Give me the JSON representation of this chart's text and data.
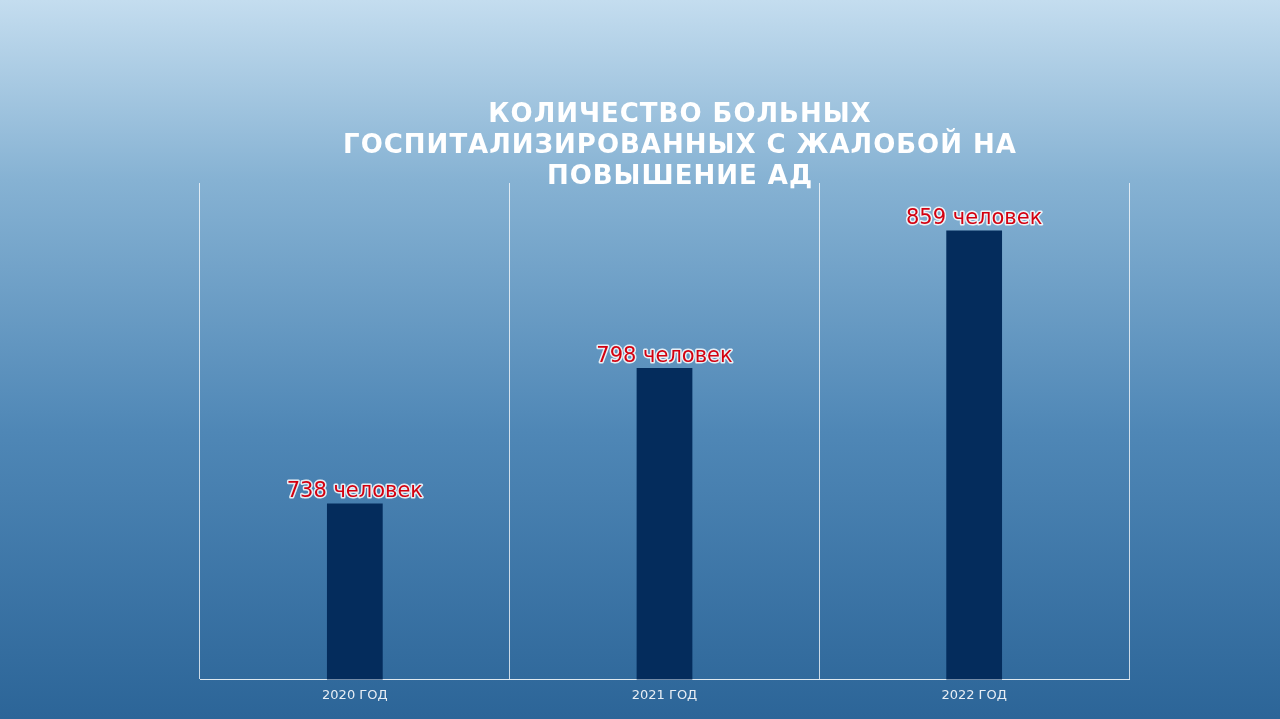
{
  "chart_data": {
    "type": "bar",
    "title": "КОЛИЧЕСТВО БОЛЬНЫХ ГОСПИТАЛИЗИРОВАННЫХ С ЖАЛОБОЙ НА ПОВЫШЕНИЕ АД",
    "categories": [
      "2020 ГОД",
      "2021 ГОД",
      "2022 ГОД"
    ],
    "values": [
      738,
      798,
      859
    ],
    "value_labels": [
      "738 человек",
      "798 человек",
      "859 человек"
    ],
    "color": "#042c5c",
    "ylim": [
      660,
      880
    ],
    "tick_labels": "x",
    "grid": "x",
    "legend": false
  }
}
